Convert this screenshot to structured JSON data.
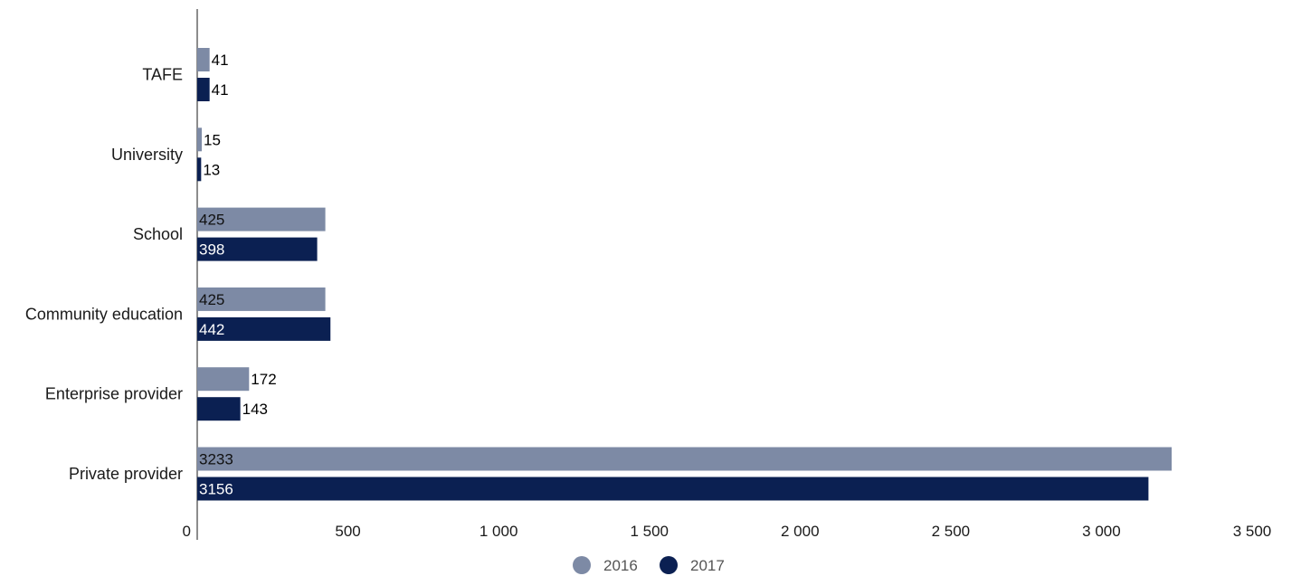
{
  "chart_data": {
    "type": "bar",
    "orientation": "horizontal",
    "categories": [
      "TAFE",
      "University",
      "School",
      "Community education",
      "Enterprise provider",
      "Private provider"
    ],
    "series": [
      {
        "name": "2016",
        "values": [
          41,
          15,
          425,
          425,
          172,
          3233
        ],
        "color": "#7d8aa5"
      },
      {
        "name": "2017",
        "values": [
          41,
          13,
          398,
          442,
          143,
          3156
        ],
        "color": "#0b2052"
      }
    ],
    "xticks": [
      0,
      500,
      1000,
      1500,
      2000,
      2500,
      3000,
      3500
    ],
    "xtick_labels": [
      "0",
      "500",
      "1 000",
      "1 500",
      "2 000",
      "2 500",
      "3 000",
      "3 500"
    ],
    "xlim": [
      0,
      3500
    ],
    "grid": false,
    "legend_position": "bottom-center",
    "title": "",
    "xlabel": "",
    "ylabel": ""
  }
}
